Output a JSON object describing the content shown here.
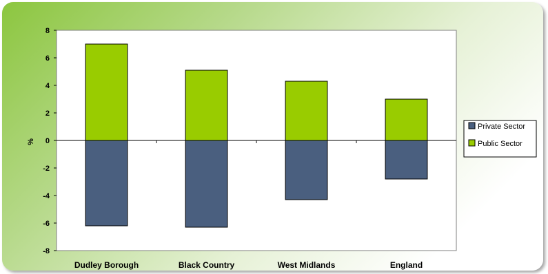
{
  "chart_data": {
    "type": "bar",
    "stacked": true,
    "categories": [
      "Dudley Borough",
      "Black Country",
      "West Midlands",
      "England"
    ],
    "series": [
      {
        "name": "Private Sector",
        "color": "#4a5f7f",
        "values": [
          -6.2,
          -6.3,
          -4.3,
          -2.8
        ]
      },
      {
        "name": "Public Sector",
        "color": "#99cc00",
        "values": [
          7.0,
          5.1,
          4.3,
          3.0
        ]
      }
    ],
    "ylabel": "%",
    "ylim": [
      -8,
      8
    ],
    "yticks": [
      8,
      6,
      4,
      2,
      0,
      -2,
      -4,
      -6,
      -8
    ],
    "grid": false,
    "legend_position": "right"
  }
}
